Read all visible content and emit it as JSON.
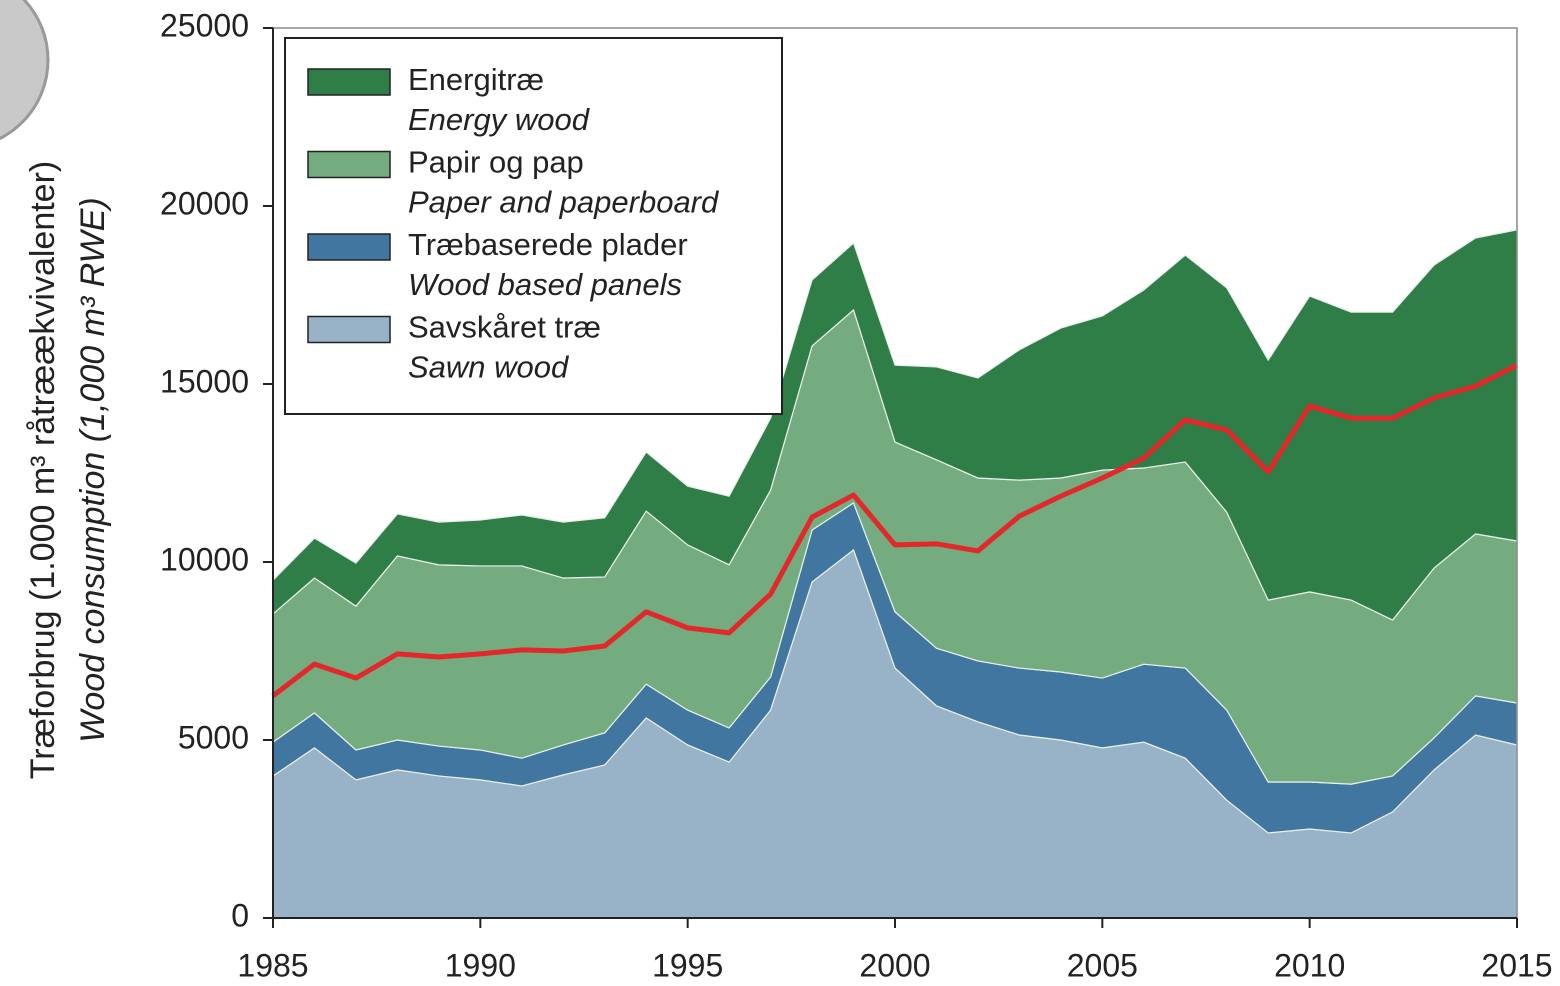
{
  "chart_data": {
    "type": "area",
    "ylabel": [
      "Træforbrug (1.000 m³ råtræækvivalenter)",
      "Wood consumption (1,000 m³ RWE)"
    ],
    "x": [
      1985,
      1986,
      1987,
      1988,
      1989,
      1990,
      1991,
      1992,
      1993,
      1994,
      1995,
      1996,
      1997,
      1998,
      1999,
      2000,
      2001,
      2002,
      2003,
      2004,
      2005,
      2006,
      2007,
      2008,
      2009,
      2010,
      2011,
      2012,
      2013,
      2014,
      2015
    ],
    "xlim": [
      1985,
      2015
    ],
    "xticks": [
      1985,
      1990,
      1995,
      2000,
      2005,
      2010,
      2015
    ],
    "ylim": [
      0,
      25000
    ],
    "yticks": [
      0,
      5000,
      10000,
      15000,
      20000,
      25000
    ],
    "stacked": true,
    "legend": "upper left",
    "series": [
      {
        "name": "Energitræ",
        "name_en": "Energy wood",
        "color": "#2f7d47",
        "values": [
          950,
          1120,
          1210,
          1180,
          1200,
          1290,
          1430,
          1570,
          1660,
          1660,
          1650,
          1930,
          2020,
          1850,
          1880,
          2160,
          2610,
          2810,
          3660,
          4210,
          4330,
          5000,
          5810,
          6300,
          6740,
          8310,
          8090,
          8650,
          8510,
          8310,
          8740
        ]
      },
      {
        "name": "Papir og pap",
        "name_en": "Paper and paperboard",
        "color": "#74ab7f",
        "values": [
          3600,
          3790,
          4040,
          5170,
          5090,
          5170,
          5400,
          4690,
          4380,
          4860,
          4640,
          4580,
          5250,
          5170,
          5420,
          4770,
          5290,
          5140,
          5280,
          5450,
          5840,
          5510,
          5790,
          5560,
          5110,
          5340,
          5170,
          4380,
          4770,
          4550,
          4550
        ]
      },
      {
        "name": "Træbaserede plader",
        "name_en": "Wood based panels",
        "color": "#4176a0",
        "values": [
          950,
          980,
          840,
          840,
          840,
          840,
          780,
          840,
          900,
          950,
          980,
          960,
          930,
          1460,
          1320,
          1580,
          1620,
          1710,
          1880,
          1910,
          1960,
          2190,
          2530,
          2530,
          1430,
          1320,
          1370,
          1010,
          900,
          1100,
          1180
        ]
      },
      {
        "name": "Savskåret træ",
        "name_en": "Sawn wood",
        "color": "#98b3c8",
        "values": [
          3990,
          4780,
          3880,
          4160,
          3990,
          3880,
          3710,
          4020,
          4300,
          5620,
          4860,
          4380,
          5840,
          9440,
          10340,
          7020,
          5960,
          5510,
          5140,
          5000,
          4780,
          4940,
          4490,
          3310,
          2390,
          2500,
          2390,
          2980,
          4160,
          5140,
          4860
        ]
      }
    ],
    "line": {
      "color": "#e3282b",
      "values": [
        6240,
        7130,
        6740,
        7420,
        7330,
        7420,
        7530,
        7500,
        7640,
        8600,
        8150,
        8010,
        9100,
        11260,
        11880,
        10480,
        10510,
        10310,
        11290,
        11850,
        12360,
        12920,
        13990,
        13710,
        12530,
        14380,
        14040,
        14040,
        14610,
        14940,
        15530
      ]
    }
  }
}
